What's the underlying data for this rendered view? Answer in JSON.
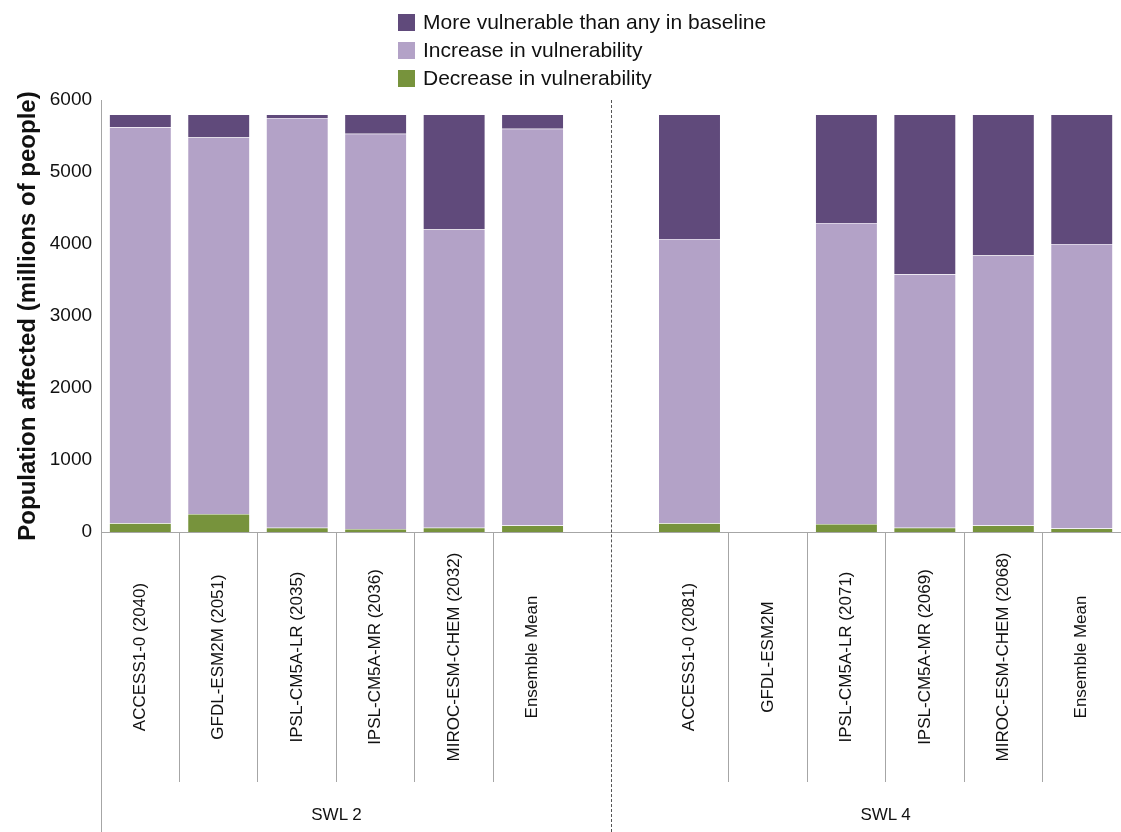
{
  "chart_data": {
    "type": "bar",
    "stacked": true,
    "ylabel": "Population affected (millions of people)",
    "categories": [
      "ACCESS1-0 (2040)",
      "GFDL-ESM2M (2051)",
      "IPSL-CM5A-LR (2035)",
      "IPSL-CM5A-MR (2036)",
      "MIROC-ESM-CHEM (2032)",
      "Ensemble Mean",
      null,
      "ACCESS1-0 (2081)",
      "GFDL-ESM2M",
      "IPSL-CM5A-LR (2071)",
      "IPSL-CM5A-MR (2069)",
      "MIROC-ESM-CHEM (2068)",
      "Ensemble Mean"
    ],
    "series": [
      {
        "name": "Decrease in vulnerability",
        "color": "#77933c",
        "values": [
          120,
          250,
          60,
          40,
          60,
          90,
          null,
          120,
          null,
          110,
          60,
          90,
          50
        ]
      },
      {
        "name": "Increase in vulnerability",
        "color": "#b3a2c7",
        "values": [
          5500,
          5230,
          5690,
          5490,
          4140,
          5510,
          null,
          3950,
          null,
          4180,
          3520,
          3750,
          3950
        ]
      },
      {
        "name": "More vulnerable than any in baseline",
        "color": "#604a7b",
        "values": [
          180,
          320,
          50,
          270,
          1600,
          200,
          null,
          1730,
          null,
          1510,
          2220,
          1960,
          1800
        ]
      }
    ],
    "ylim": [
      0,
      6000
    ],
    "yticks": [
      0,
      1000,
      2000,
      3000,
      4000,
      5000,
      6000
    ],
    "grid": "x",
    "legend": "top",
    "annotations": [
      "SWL 2",
      "SWL 4"
    ]
  }
}
